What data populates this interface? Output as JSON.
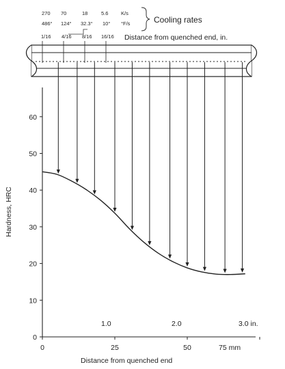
{
  "header": {
    "cooling_rates_label": "Cooling rates",
    "rates_ks": [
      "270",
      "70",
      "18",
      "5.6"
    ],
    "unit_ks": "K/s",
    "rates_fs": [
      "486°",
      "124°",
      "32.3°",
      "10°"
    ],
    "unit_fs": "°F/s",
    "distances_in": [
      "1/16",
      "4/16",
      "8/16",
      "16/16"
    ],
    "bar_label": "Distance from quenched end, in."
  },
  "chart_data": {
    "type": "line",
    "xlabel": "Distance from quenched end",
    "ylabel": "Hardness, HRC",
    "x_unit_mm": "75 mm",
    "x_unit_in": "3.0 in.",
    "xlim": [
      0,
      80
    ],
    "ylim": [
      0,
      70
    ],
    "x_ticks_mm": [
      "0",
      "25",
      "50"
    ],
    "x_ticks_in": [
      "1.0",
      "2.0"
    ],
    "y_ticks": [
      "0",
      "10",
      "20",
      "30",
      "40",
      "50",
      "60"
    ],
    "series": [
      {
        "x": [
          0,
          5,
          10,
          15,
          20,
          25,
          30,
          35,
          40,
          45,
          50,
          55,
          60,
          65,
          70
        ],
        "y": [
          45,
          44.3,
          42.5,
          40.2,
          37.3,
          33.7,
          29.5,
          25.8,
          22.8,
          20.5,
          18.8,
          17.7,
          17.1,
          17.0,
          17.2
        ]
      }
    ],
    "arrow_x": [
      5.5,
      12,
      18,
      25,
      31,
      37,
      44,
      50,
      56,
      63,
      69
    ]
  }
}
